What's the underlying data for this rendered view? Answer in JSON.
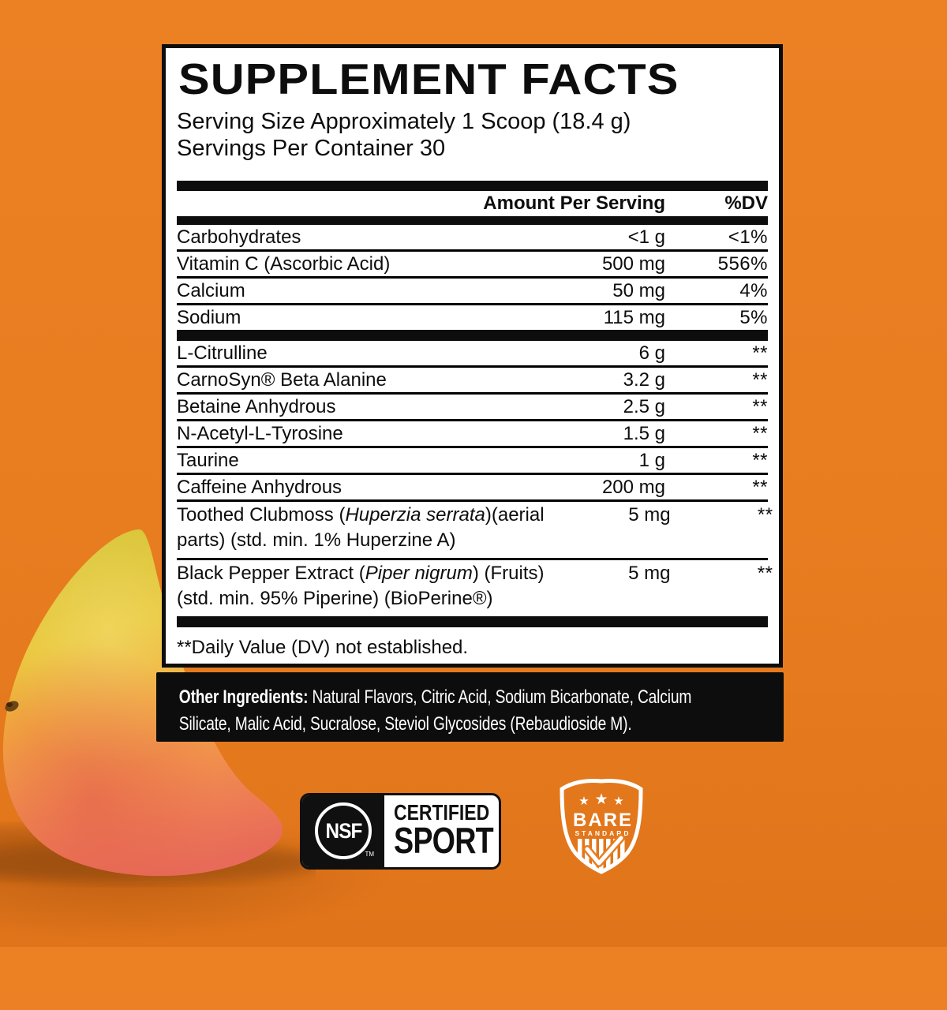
{
  "colors": {
    "background_orange": "#E87D20",
    "background_orange_dark": "#E0741A",
    "panel_black": "#0D0D0D",
    "panel_white": "#FFFFFF",
    "shield_white": "#FFFFFF"
  },
  "panel": {
    "title": "SUPPLEMENT FACTS",
    "serving_size": "Serving Size Approximately 1 Scoop (18.4 g)",
    "servings_per_container": "Servings Per Container 30",
    "columns": {
      "amount": "Amount Per Serving",
      "dv": "%DV"
    },
    "groups": [
      {
        "rows": [
          {
            "name": "Carbohydrates",
            "amount": "<1 g",
            "dv": "<1%"
          },
          {
            "name": "Vitamin C (Ascorbic Acid)",
            "amount": "500 mg",
            "dv": "556%"
          },
          {
            "name": "Calcium",
            "amount": "50 mg",
            "dv": "4%"
          },
          {
            "name": "Sodium",
            "amount": "115 mg",
            "dv": "5%"
          }
        ]
      },
      {
        "rows": [
          {
            "name": "L-Citrulline",
            "amount": "6 g",
            "dv": "**"
          },
          {
            "name": "CarnoSyn® Beta Alanine",
            "amount": "3.2 g",
            "dv": "**"
          },
          {
            "name": "Betaine Anhydrous",
            "amount": "2.5 g",
            "dv": "**"
          },
          {
            "name": "N-Acetyl-L-Tyrosine",
            "amount": "1.5 g",
            "dv": "**"
          },
          {
            "name": "Taurine",
            "amount": "1 g",
            "dv": "**"
          },
          {
            "name": "Caffeine Anhydrous",
            "amount": "200 mg",
            "dv": "**"
          },
          {
            "name": "Toothed Clubmoss (",
            "name_italic": "Huperzia serrata",
            "name_post": ")(aerial",
            "line2": "parts) (std. min. 1% Huperzine A)",
            "amount": "5 mg",
            "dv": "**"
          },
          {
            "name": "Black Pepper Extract (",
            "name_italic": "Piper nigrum",
            "name_post": ") (Fruits)",
            "line2": "(std. min. 95% Piperine) (BioPerine®)",
            "amount": "5 mg",
            "dv": "**"
          }
        ]
      }
    ],
    "footnote": "**Daily Value (DV) not established."
  },
  "other_ingredients": {
    "label": "Other Ingredients:",
    "line1_rest": " Natural Flavors, Citric Acid, Sodium Bicarbonate, Calcium",
    "line2": "Silicate, Malic Acid, Sucralose, Steviol Glycosides (Rebaudioside M)."
  },
  "badges": {
    "nsf": {
      "logo": "NSF",
      "tm": "TM",
      "line1": "CERTIFIED",
      "line2": "SPORT"
    },
    "shield": {
      "brand": "BARE",
      "sub": "STANDARD"
    }
  }
}
